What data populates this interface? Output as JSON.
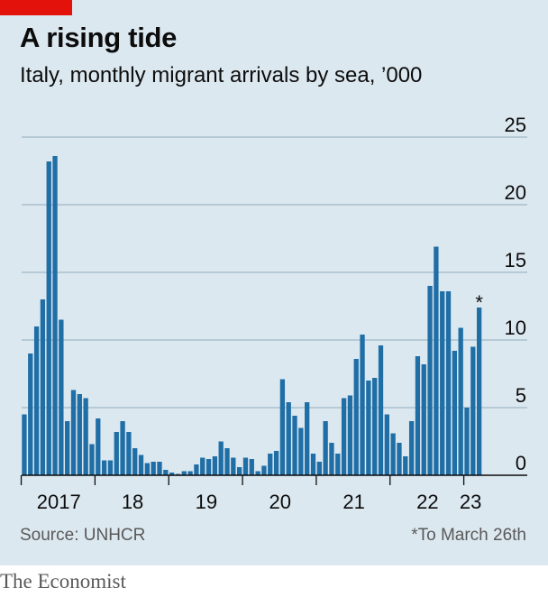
{
  "header": {
    "title": "A rising tide",
    "subtitle": "Italy, monthly migrant arrivals by sea, ’000"
  },
  "footer": {
    "source": "Source: UNHCR",
    "note": "*To March 26th",
    "brand": "The Economist"
  },
  "colors": {
    "bar": "#1f6ea5",
    "accent": "#e3120b",
    "background": "#dce8f0",
    "grid": "#a9bfce"
  },
  "chart_data": {
    "type": "bar",
    "title": "A rising tide",
    "subtitle": "Italy, monthly migrant arrivals by sea, ’000",
    "ylim": [
      0,
      25
    ],
    "yticks": [
      0,
      5,
      10,
      15,
      20,
      25
    ],
    "x_tick_labels": [
      "2017",
      "18",
      "19",
      "20",
      "21",
      "22",
      "23"
    ],
    "start_month": "2017-01",
    "annotation": {
      "text": "*",
      "month": "2023-03"
    },
    "grid": true,
    "values": [
      4.5,
      9.0,
      11.0,
      13.0,
      23.2,
      23.6,
      11.5,
      4.0,
      6.3,
      6.0,
      5.7,
      2.3,
      4.2,
      1.1,
      1.1,
      3.2,
      4.0,
      3.2,
      2.0,
      1.5,
      0.9,
      1.0,
      1.0,
      0.4,
      0.2,
      0.1,
      0.3,
      0.3,
      0.8,
      1.3,
      1.2,
      1.4,
      2.5,
      2.0,
      1.3,
      0.6,
      1.3,
      1.2,
      0.3,
      0.7,
      1.6,
      1.8,
      7.1,
      5.4,
      4.4,
      3.5,
      5.4,
      1.6,
      1.0,
      4.0,
      2.4,
      1.6,
      5.7,
      5.9,
      8.6,
      10.4,
      7.0,
      7.2,
      9.6,
      4.5,
      3.1,
      2.4,
      1.4,
      4.0,
      8.8,
      8.2,
      14.0,
      16.9,
      13.6,
      13.6,
      9.2,
      10.9,
      5.0,
      9.5,
      12.4
    ]
  }
}
